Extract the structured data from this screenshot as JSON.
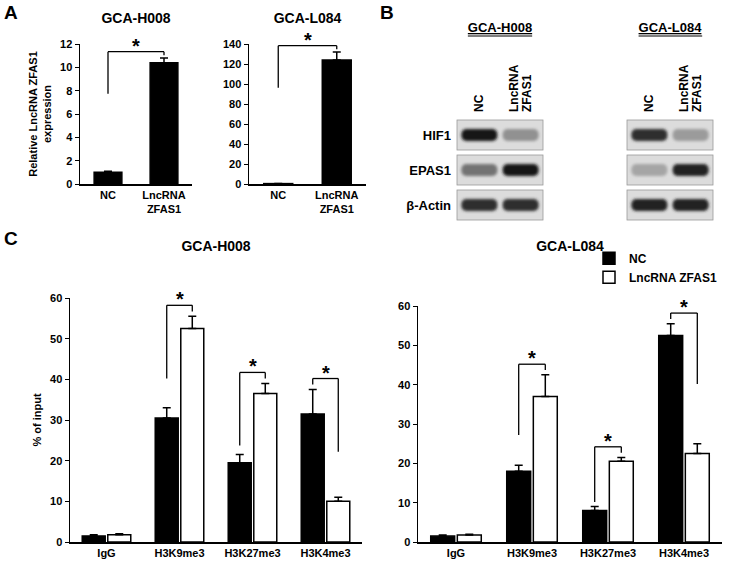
{
  "panel_labels": [
    "A",
    "B",
    "C"
  ],
  "chart_data": [
    {
      "type": "bar",
      "title": "GCA-H008",
      "ylabel": "Relative LncRNA ZFAS1\nexpression",
      "categories": [
        "NC",
        "LncRNA\nZFAS1"
      ],
      "values": [
        1.0,
        10.4
      ],
      "errors": [
        0.1,
        0.4
      ],
      "color": "#000000",
      "ylim": [
        0,
        12
      ],
      "yticks": [
        0,
        2,
        4,
        6,
        8,
        10,
        12
      ],
      "grid": false,
      "annotations": [
        {
          "text": "*",
          "categories": [
            "NC",
            "LncRNA\nZFAS1"
          ]
        }
      ]
    },
    {
      "type": "bar",
      "title": "GCA-L084",
      "categories": [
        "NC",
        "LncRNA\nZFAS1"
      ],
      "values": [
        0.4,
        124
      ],
      "errors": [
        0,
        8
      ],
      "color": "#000000",
      "ylim": [
        0,
        140
      ],
      "yticks": [
        0,
        20,
        40,
        60,
        80,
        100,
        120,
        140
      ],
      "grid": false,
      "annotations": [
        {
          "text": "*",
          "categories": [
            "NC",
            "LncRNA\nZFAS1"
          ]
        }
      ]
    },
    {
      "type": "bar",
      "title": "GCA-H008",
      "ylabel": "% of input",
      "categories": [
        "IgG",
        "H3K9me3",
        "H3K27me3",
        "H3K4me3"
      ],
      "series": [
        {
          "name": "NC",
          "color": "#000000",
          "values": [
            1.5,
            30.5,
            19.5,
            31.5
          ],
          "errors": [
            0.3,
            2.5,
            2,
            6
          ]
        },
        {
          "name": "LncRNA ZFAS1",
          "color": "#ffffff",
          "values": [
            1.8,
            52.5,
            36.5,
            10
          ],
          "errors": [
            0.2,
            3,
            2.5,
            1
          ]
        }
      ],
      "ylim": [
        0,
        60
      ],
      "yticks": [
        0,
        10,
        20,
        30,
        40,
        50,
        60
      ],
      "grid": false,
      "annotations": [
        {
          "text": "*",
          "category": "H3K9me3"
        },
        {
          "text": "*",
          "category": "H3K27me3"
        },
        {
          "text": "*",
          "category": "H3K4me3"
        }
      ]
    },
    {
      "type": "bar",
      "title": "GCA-L084",
      "categories": [
        "IgG",
        "H3K9me3",
        "H3K27me3",
        "H3K4me3"
      ],
      "series": [
        {
          "name": "NC",
          "color": "#000000",
          "values": [
            1.5,
            18,
            8,
            52.5
          ],
          "errors": [
            0.3,
            1.5,
            1,
            3
          ]
        },
        {
          "name": "LncRNA ZFAS1",
          "color": "#ffffff",
          "values": [
            1.8,
            37,
            20.5,
            22.5
          ],
          "errors": [
            0.2,
            5.5,
            1,
            2.5
          ]
        }
      ],
      "ylim": [
        0,
        60
      ],
      "yticks": [
        0,
        10,
        20,
        30,
        40,
        50,
        60
      ],
      "grid": false,
      "legend": "top right",
      "annotations": [
        {
          "text": "*",
          "category": "H3K9me3"
        },
        {
          "text": "*",
          "category": "H3K27me3"
        },
        {
          "text": "*",
          "category": "H3K4me3"
        }
      ]
    }
  ],
  "blot": {
    "rows": [
      "HIF1",
      "EPAS1",
      "β-Actin"
    ],
    "groups": [
      {
        "title": "GCA-H008",
        "lanes": [
          "NC",
          "LncRNA\nZFAS1"
        ],
        "intensity": [
          [
            0.95,
            0.35
          ],
          [
            0.5,
            0.95
          ],
          [
            0.85,
            0.85
          ]
        ]
      },
      {
        "title": "GCA-L084",
        "lanes": [
          "NC",
          "LncRNA\nZFAS1"
        ],
        "intensity": [
          [
            0.85,
            0.3
          ],
          [
            0.25,
            0.9
          ],
          [
            0.9,
            0.9
          ]
        ]
      }
    ]
  }
}
